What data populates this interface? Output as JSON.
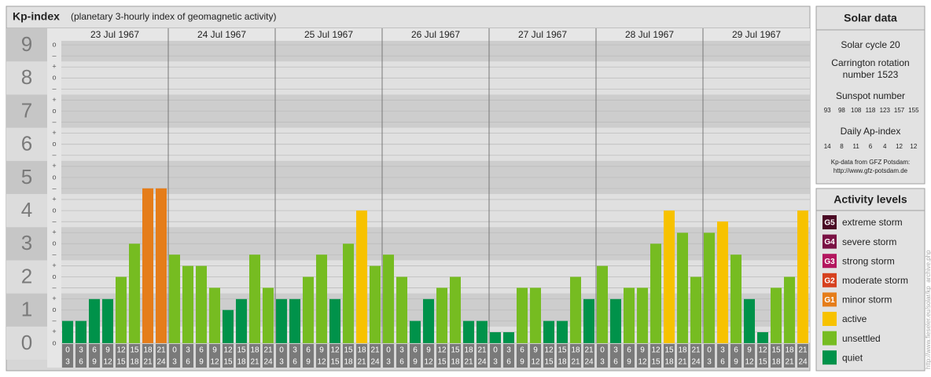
{
  "chart_data": {
    "type": "bar",
    "title": "Kp-index",
    "subtitle": "(planetary 3-hourly index of geomagnetic activity)",
    "days": [
      "23 Jul 1967",
      "24 Jul 1967",
      "25 Jul 1967",
      "26 Jul 1967",
      "27 Jul 1967",
      "28 Jul 1967",
      "29 Jul 1967"
    ],
    "hours": [
      [
        "0",
        "3"
      ],
      [
        "3",
        "6"
      ],
      [
        "6",
        "9"
      ],
      [
        "9",
        "12"
      ],
      [
        "12",
        "15"
      ],
      [
        "15",
        "18"
      ],
      [
        "18",
        "21"
      ],
      [
        "21",
        "24"
      ]
    ],
    "values": [
      0.67,
      0.67,
      1.33,
      1.33,
      2,
      3,
      4.67,
      4.67,
      2.67,
      2.33,
      2.33,
      1.67,
      1,
      1.33,
      2.67,
      1.67,
      1.33,
      1.33,
      2,
      2.67,
      1.33,
      3,
      4,
      2.33,
      2.67,
      2,
      0.67,
      1.33,
      1.67,
      2,
      0.67,
      0.67,
      0.33,
      0.33,
      1.67,
      1.67,
      0.67,
      0.67,
      2,
      1.33,
      2.33,
      1.33,
      1.67,
      1.67,
      3,
      4,
      3.33,
      2,
      3.33,
      3.67,
      2.67,
      1.33,
      0.33,
      1.67,
      2,
      4
    ],
    "colors": [
      "#00924a",
      "#00924a",
      "#00924a",
      "#00924a",
      "#76bc21",
      "#76bc21",
      "#e57d1a",
      "#e57d1a",
      "#76bc21",
      "#76bc21",
      "#76bc21",
      "#76bc21",
      "#00924a",
      "#00924a",
      "#76bc21",
      "#76bc21",
      "#00924a",
      "#00924a",
      "#76bc21",
      "#76bc21",
      "#00924a",
      "#76bc21",
      "#f7c200",
      "#76bc21",
      "#76bc21",
      "#76bc21",
      "#00924a",
      "#00924a",
      "#76bc21",
      "#76bc21",
      "#00924a",
      "#00924a",
      "#00924a",
      "#00924a",
      "#76bc21",
      "#76bc21",
      "#00924a",
      "#00924a",
      "#76bc21",
      "#00924a",
      "#76bc21",
      "#00924a",
      "#76bc21",
      "#76bc21",
      "#76bc21",
      "#f7c200",
      "#76bc21",
      "#76bc21",
      "#76bc21",
      "#f7c200",
      "#76bc21",
      "#00924a",
      "#00924a",
      "#76bc21",
      "#76bc21",
      "#f7c200"
    ],
    "ylim": [
      -0.5,
      9.5
    ],
    "yticks": [
      0,
      1,
      2,
      3,
      4,
      5,
      6,
      7,
      8,
      9
    ],
    "minor_symbols": {
      "zero": "o",
      "plus": "+",
      "minus": "–"
    },
    "grid": true
  },
  "solar_data": {
    "title": "Solar data",
    "cycle": "Solar cycle 20",
    "carrington": [
      "Carrington rotation",
      "number 1523"
    ],
    "sunspot_title": "Sunspot number",
    "sunspot": [
      93,
      98,
      108,
      118,
      123,
      157,
      155
    ],
    "ap_title": "Daily Ap-index",
    "ap": [
      14,
      8,
      11,
      6,
      4,
      12,
      12
    ],
    "source": [
      "Kp-data from GFZ Potsdam:",
      "http://www.gfz-potsdam.de"
    ]
  },
  "legend": {
    "title": "Activity levels",
    "levels": [
      {
        "badge": "G5",
        "name": "extreme storm",
        "color": "#4a0a24"
      },
      {
        "badge": "G4",
        "name": "severe storm",
        "color": "#7a1244"
      },
      {
        "badge": "G3",
        "name": "strong storm",
        "color": "#b3165e"
      },
      {
        "badge": "G2",
        "name": "moderate storm",
        "color": "#d6401e"
      },
      {
        "badge": "G1",
        "name": "minor storm",
        "color": "#e57d1a"
      },
      {
        "name": "active",
        "color": "#f7c200"
      },
      {
        "name": "unsettled",
        "color": "#76bc21"
      },
      {
        "name": "quiet",
        "color": "#00924a"
      }
    ]
  },
  "footer_url": "http://www.fieseler.eu/solar/kp_archive.php"
}
